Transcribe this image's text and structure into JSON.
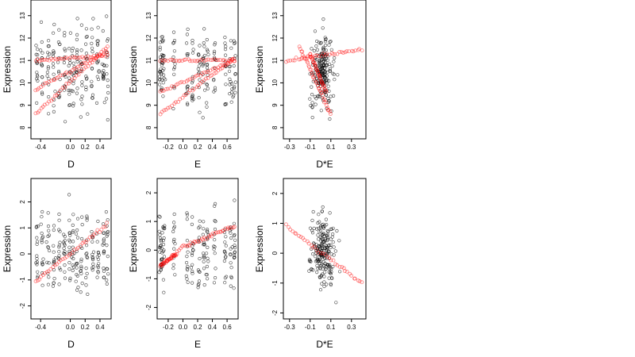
{
  "chart_data": [
    {
      "type": "scatter",
      "xlabel": "D",
      "ylabel": "Expression",
      "xlim": [
        -0.53,
        0.55
      ],
      "ylim": [
        7.5,
        13.7
      ],
      "xticks": [
        -0.4,
        0.0,
        0.2,
        0.4
      ],
      "xtick_labels": [
        "-0.4",
        "0.0",
        "0.2",
        "0.4"
      ],
      "yticks": [
        8,
        9,
        10,
        11,
        12,
        13
      ],
      "ytick_labels": [
        "8",
        "9",
        "10",
        "11",
        "12",
        "13"
      ],
      "grid": false,
      "series": [
        {
          "color": "#000000",
          "style": "open circles",
          "x_clusters": [
            -0.45,
            -0.38,
            -0.3,
            -0.22,
            -0.15,
            -0.08,
            -0.01,
            0.04,
            0.09,
            0.15,
            0.22,
            0.3,
            0.37,
            0.45,
            0.5
          ],
          "y_range": [
            7.6,
            13.6
          ]
        },
        {
          "color": "#ff0000",
          "style": "open circles (translucent)",
          "lines": [
            {
              "x": [
                -0.47,
                0.5
              ],
              "y": [
                8.6,
                11.6
              ]
            },
            {
              "x": [
                -0.47,
                0.5
              ],
              "y": [
                9.7,
                11.4
              ]
            },
            {
              "x": [
                -0.47,
                0.5
              ],
              "y": [
                11.0,
                11.2
              ]
            }
          ]
        }
      ]
    },
    {
      "type": "scatter",
      "xlabel": "E",
      "ylabel": "Expression",
      "xlim": [
        -0.35,
        0.75
      ],
      "ylim": [
        7.5,
        13.7
      ],
      "xticks": [
        -0.2,
        0.0,
        0.2,
        0.4,
        0.6
      ],
      "xtick_labels": [
        "-0.2",
        "0.0",
        "0.2",
        "0.4",
        "0.6"
      ],
      "yticks": [
        8,
        9,
        10,
        11,
        12,
        13
      ],
      "ytick_labels": [
        "8",
        "9",
        "10",
        "11",
        "12",
        "13"
      ],
      "grid": false,
      "series": [
        {
          "color": "#000000",
          "style": "open circles",
          "x_clusters": [
            -0.31,
            -0.29,
            -0.26,
            -0.12,
            0.06,
            0.13,
            0.22,
            0.28,
            0.33,
            0.43,
            0.58,
            0.65,
            0.7
          ],
          "y_range": [
            7.6,
            13.6
          ]
        },
        {
          "color": "#ff0000",
          "style": "open circles (translucent)",
          "lines": [
            {
              "x": [
                -0.31,
                0.7
              ],
              "y": [
                8.6,
                11.1
              ]
            },
            {
              "x": [
                -0.31,
                0.7
              ],
              "y": [
                9.6,
                11.0
              ]
            },
            {
              "x": [
                -0.31,
                0.7
              ],
              "y": [
                11.0,
                11.0
              ]
            }
          ]
        }
      ]
    },
    {
      "type": "scatter",
      "xlabel": "D*E",
      "ylabel": "Expression",
      "xlim": [
        -0.36,
        0.44
      ],
      "ylim": [
        7.5,
        13.7
      ],
      "xticks": [
        -0.3,
        -0.1,
        0.1,
        0.3
      ],
      "xtick_labels": [
        "-0.3",
        "-0.1",
        "0.1",
        "0.3"
      ],
      "yticks": [
        8,
        9,
        10,
        11,
        12,
        13
      ],
      "ytick_labels": [
        "8",
        "9",
        "10",
        "11",
        "12",
        "13"
      ],
      "grid": false,
      "series": [
        {
          "color": "#000000",
          "style": "open circles",
          "x_center": 0.02,
          "x_spread": 0.08,
          "y_range": [
            7.6,
            13.4
          ]
        },
        {
          "color": "#ff0000",
          "style": "open circles (translucent)",
          "lines": [
            {
              "x": [
                -0.33,
                0.4
              ],
              "y": [
                11.0,
                11.5
              ]
            },
            {
              "x": [
                -0.2,
                0.1
              ],
              "y": [
                11.6,
                8.6
              ]
            },
            {
              "x": [
                -0.1,
                0.05
              ],
              "y": [
                11.3,
                9.6
              ]
            }
          ]
        }
      ]
    },
    {
      "type": "scatter",
      "xlabel": "D",
      "ylabel": "Expression",
      "xlim": [
        -0.53,
        0.55
      ],
      "ylim": [
        -2.5,
        2.9
      ],
      "xticks": [
        -0.4,
        0.0,
        0.2,
        0.4
      ],
      "xtick_labels": [
        "-0.4",
        "0.0",
        "0.2",
        "0.4"
      ],
      "yticks": [
        -2,
        -1,
        0,
        1,
        2
      ],
      "ytick_labels": [
        "-2",
        "-1",
        "0",
        "1",
        "2"
      ],
      "grid": false,
      "series": [
        {
          "color": "#000000",
          "style": "open circles",
          "x_clusters": [
            -0.45,
            -0.38,
            -0.3,
            -0.22,
            -0.15,
            -0.08,
            -0.01,
            0.04,
            0.09,
            0.15,
            0.22,
            0.3,
            0.37,
            0.45,
            0.5
          ],
          "y_range": [
            -2.4,
            2.6
          ]
        },
        {
          "color": "#ff0000",
          "style": "open circles (translucent)",
          "lines": [
            {
              "x": [
                -0.47,
                0.5
              ],
              "y": [
                -1.05,
                1.15
              ]
            }
          ]
        }
      ]
    },
    {
      "type": "scatter",
      "xlabel": "E",
      "ylabel": "Expression",
      "xlim": [
        -0.35,
        0.75
      ],
      "ylim": [
        -2.4,
        2.5
      ],
      "xticks": [
        -0.2,
        0.0,
        0.2,
        0.4,
        0.6
      ],
      "xtick_labels": [
        "-0.2",
        "0.0",
        "0.2",
        "0.4",
        "0.6"
      ],
      "yticks": [
        -2,
        -1,
        0,
        1,
        2
      ],
      "ytick_labels": [
        "-2",
        "-1",
        "0",
        "1",
        "2"
      ],
      "grid": false,
      "series": [
        {
          "color": "#000000",
          "style": "open circles",
          "x_clusters": [
            -0.31,
            -0.29,
            -0.26,
            -0.12,
            0.06,
            0.13,
            0.22,
            0.28,
            0.33,
            0.43,
            0.58,
            0.65,
            0.7
          ],
          "y_range": [
            -2.3,
            2.4
          ]
        },
        {
          "color": "#ff0000",
          "style": "open circles (translucent)",
          "lines": [
            {
              "x": [
                -0.31,
                -0.08
              ],
              "y": [
                -0.55,
                -0.1
              ]
            },
            {
              "x": [
                -0.05,
                0.7
              ],
              "y": [
                0.05,
                0.85
              ]
            }
          ]
        }
      ]
    },
    {
      "type": "scatter",
      "xlabel": "D*E",
      "ylabel": "Expression",
      "xlim": [
        -0.36,
        0.44
      ],
      "ylim": [
        -2.2,
        2.5
      ],
      "xticks": [
        -0.3,
        -0.1,
        0.1,
        0.3
      ],
      "xtick_labels": [
        "-0.3",
        "-0.1",
        "0.1",
        "0.3"
      ],
      "yticks": [
        -2,
        -1,
        0,
        1,
        2
      ],
      "ytick_labels": [
        "-2",
        "-1",
        "0",
        "1",
        "2"
      ],
      "grid": false,
      "series": [
        {
          "color": "#000000",
          "style": "open circles",
          "x_center": 0.02,
          "x_spread": 0.08,
          "y_range": [
            -2.0,
            2.2
          ]
        },
        {
          "color": "#ff0000",
          "style": "open circles (translucent)",
          "lines": [
            {
              "x": [
                -0.33,
                0.4
              ],
              "y": [
                0.9,
                -1.0
              ]
            }
          ]
        }
      ]
    }
  ]
}
